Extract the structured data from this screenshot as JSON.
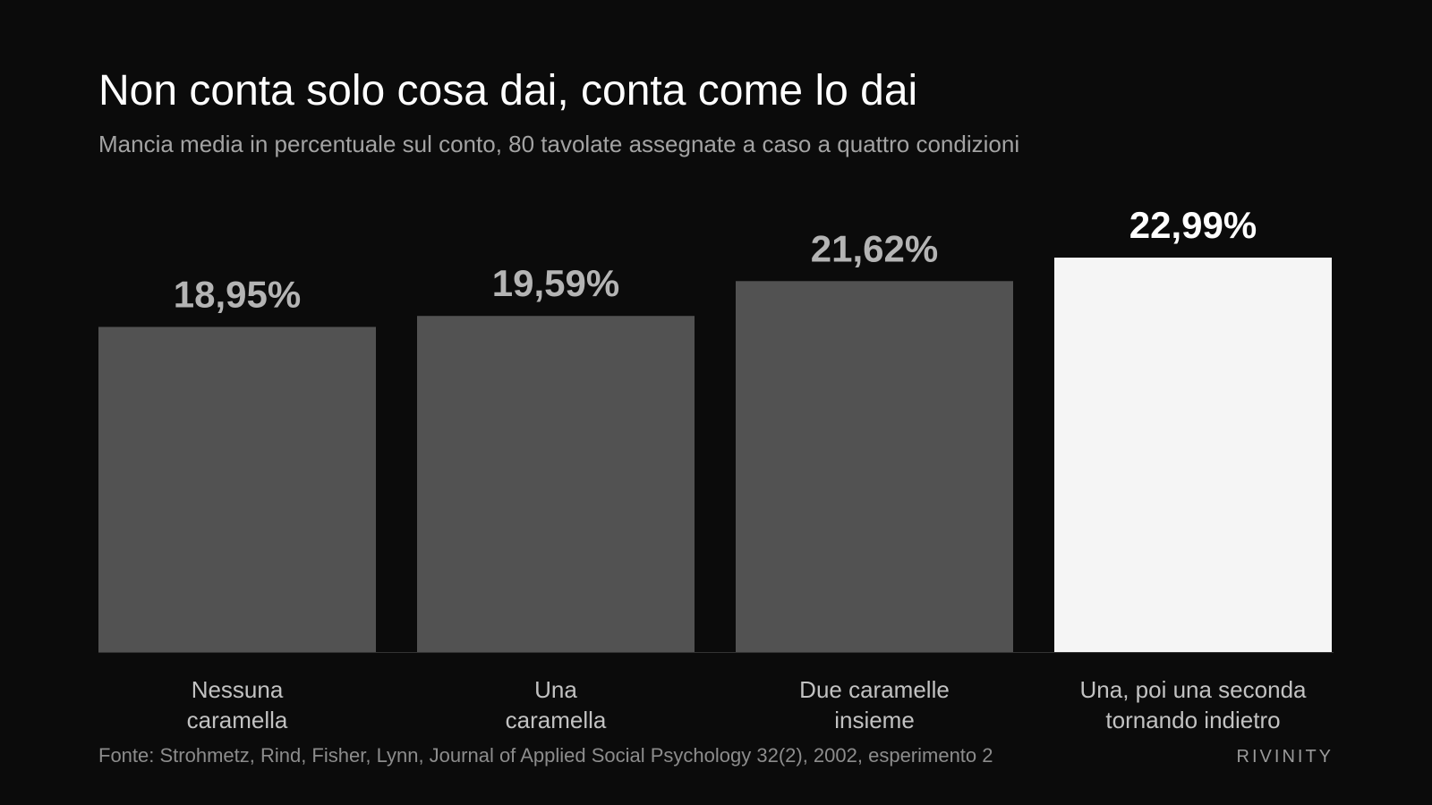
{
  "chart_data": {
    "type": "bar",
    "title": "Non conta solo cosa dai, conta come lo dai",
    "subtitle": "Mancia media in percentuale sul conto, 80 tavolate assegnate a caso a quattro condizioni",
    "categories": [
      "Nessuna\ncaramella",
      "Una\ncaramella",
      "Due caramelle\ninsieme",
      "Una, poi una seconda\ntornando indietro"
    ],
    "values": [
      18.95,
      19.59,
      21.62,
      22.99
    ],
    "value_labels": [
      "18,95%",
      "19,59%",
      "21,62%",
      "22,99%"
    ],
    "colors": [
      "#525252",
      "#525252",
      "#525252",
      "#f5f5f5"
    ],
    "label_colors": [
      "#b4b4b4",
      "#b4b4b4",
      "#b4b4b4",
      "#ffffff"
    ],
    "source": "Fonte: Strohmetz, Rind, Fisher, Lynn, Journal of Applied Social Psychology 32(2), 2002, esperimento 2",
    "brand": "RIVINITY"
  }
}
